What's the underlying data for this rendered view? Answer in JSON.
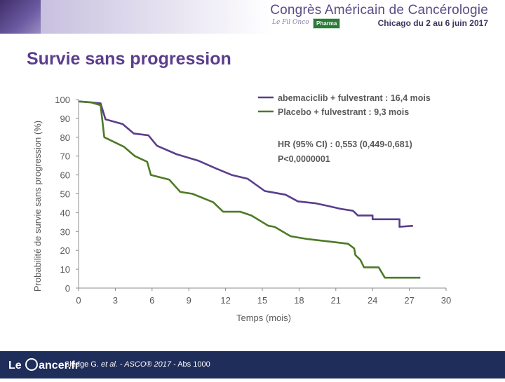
{
  "header": {
    "congress_title": "Congrès Américain de Cancérologie",
    "congress_dates": "Chicago du 2 au 6 juin 2017",
    "logo_text": "Le Fil Onco",
    "badge": "Pharma"
  },
  "slide": {
    "title": "Survie sans progression"
  },
  "footer": {
    "logo_prefix": "Le",
    "logo_suffix": "ancer.fr",
    "citation_author": "Sledge G.",
    "citation_etal": "et al.",
    "citation_source": "- ASCO® 2017",
    "citation_abs": " - Abs 1000"
  },
  "chart_data": {
    "type": "line",
    "title": "",
    "xlabel": "Temps (mois)",
    "ylabel": "Probabilité de survie sans progression (%)",
    "xlim": [
      0,
      30
    ],
    "ylim": [
      0,
      100
    ],
    "xticks": [
      0,
      3,
      6,
      9,
      12,
      15,
      18,
      21,
      24,
      27,
      30
    ],
    "yticks": [
      0,
      10,
      20,
      30,
      40,
      50,
      60,
      70,
      80,
      90,
      100
    ],
    "legend_position": "top-right",
    "series": [
      {
        "name": "abemaciclib + fulvestrant : 16,4 mois",
        "color": "#5b3d8c",
        "points": [
          [
            0,
            99
          ],
          [
            1,
            98.5
          ],
          [
            1.8,
            98
          ],
          [
            2.2,
            89.5
          ],
          [
            3.6,
            87
          ],
          [
            4.5,
            82
          ],
          [
            5.7,
            81
          ],
          [
            6.4,
            75.5
          ],
          [
            8,
            71
          ],
          [
            9.8,
            67.5
          ],
          [
            11.2,
            63.5
          ],
          [
            12.5,
            60
          ],
          [
            13.8,
            58
          ],
          [
            15.2,
            51.5
          ],
          [
            16.9,
            49.5
          ],
          [
            17.9,
            46
          ],
          [
            19.3,
            45
          ],
          [
            20.4,
            43.5
          ],
          [
            21.4,
            42
          ],
          [
            22.4,
            41
          ],
          [
            22.8,
            38.5
          ],
          [
            24,
            38.5
          ],
          [
            24,
            36.5
          ],
          [
            26.2,
            36.5
          ],
          [
            26.2,
            32.5
          ],
          [
            27.3,
            33
          ]
        ]
      },
      {
        "name": "Placebo + fulvestrant : 9,3 mois",
        "color": "#4d7a26",
        "points": [
          [
            0,
            99
          ],
          [
            1,
            98.5
          ],
          [
            1.8,
            97
          ],
          [
            2.1,
            80
          ],
          [
            3.7,
            75
          ],
          [
            4.6,
            70
          ],
          [
            5.6,
            67
          ],
          [
            5.9,
            60
          ],
          [
            7.4,
            57.5
          ],
          [
            8.3,
            51
          ],
          [
            9.3,
            50
          ],
          [
            11,
            45.5
          ],
          [
            11.8,
            40.5
          ],
          [
            13.2,
            40.5
          ],
          [
            14.1,
            38.5
          ],
          [
            15.5,
            33
          ],
          [
            16,
            32.5
          ],
          [
            17.3,
            27.5
          ],
          [
            18.7,
            26
          ],
          [
            20.7,
            24.5
          ],
          [
            22,
            23.5
          ],
          [
            22.5,
            21
          ],
          [
            22.6,
            17.5
          ],
          [
            23,
            15
          ],
          [
            23.3,
            11
          ],
          [
            24.5,
            11
          ],
          [
            25,
            5.5
          ],
          [
            27.9,
            5.5
          ]
        ]
      }
    ],
    "annotations": [
      "HR (95% CI) : 0,553 (0,449-0,681)",
      "P<0,0000001"
    ]
  }
}
